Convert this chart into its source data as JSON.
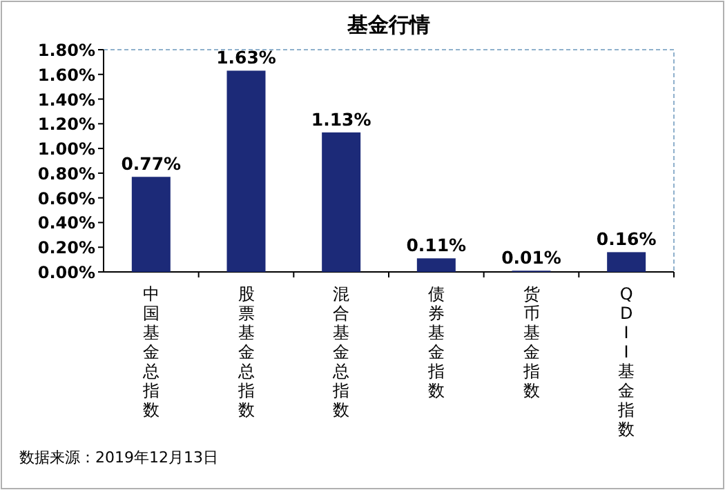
{
  "chart_data": {
    "type": "bar",
    "title": "基金行情",
    "categories": [
      "中国基金总指数",
      "股票基金总指数",
      "混合基金总指数",
      "债券基金指数",
      "货币基金指数",
      "QDII基金指数"
    ],
    "values": [
      0.77,
      1.63,
      1.13,
      0.11,
      0.01,
      0.16
    ],
    "value_labels": [
      "0.77%",
      "1.63%",
      "1.13%",
      "0.11%",
      "0.01%",
      "0.16%"
    ],
    "color": "#1c2a78",
    "ylim": [
      0,
      1.8
    ],
    "yticks": [
      {
        "value": 0,
        "label": "0.00%"
      },
      {
        "value": 0.2,
        "label": "0.20%"
      },
      {
        "value": 0.4,
        "label": "0.40%"
      },
      {
        "value": 0.6,
        "label": "0.60%"
      },
      {
        "value": 0.8,
        "label": "0.80%"
      },
      {
        "value": 1.0,
        "label": "1.00%"
      },
      {
        "value": 1.2,
        "label": "1.20%"
      },
      {
        "value": 1.4,
        "label": "1.40%"
      },
      {
        "value": 1.6,
        "label": "1.60%"
      },
      {
        "value": 1.8,
        "label": "1.80%"
      }
    ],
    "annotations": [
      "数据来源：2019年12月13日"
    ]
  }
}
